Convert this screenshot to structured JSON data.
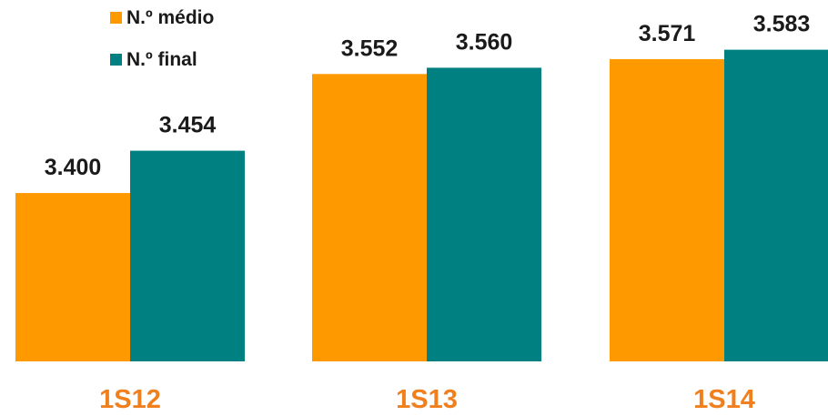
{
  "chart_data": {
    "type": "bar",
    "categories": [
      "1S12",
      "1S13",
      "1S14"
    ],
    "series": [
      {
        "name": "N.º médio",
        "color": "#ff9900",
        "values": [
          3400,
          3552,
          3571
        ],
        "labels": [
          "3.400",
          "3.552",
          "3.571"
        ]
      },
      {
        "name": "N.º final",
        "color": "#008080",
        "values": [
          3454,
          3560,
          3583
        ],
        "labels": [
          "3.454",
          "3.560",
          "3.583"
        ]
      }
    ],
    "ylim": [
      3185,
      3600
    ],
    "legend_position": "top-left",
    "grid": false,
    "category_label_color": "#f07f1e"
  }
}
